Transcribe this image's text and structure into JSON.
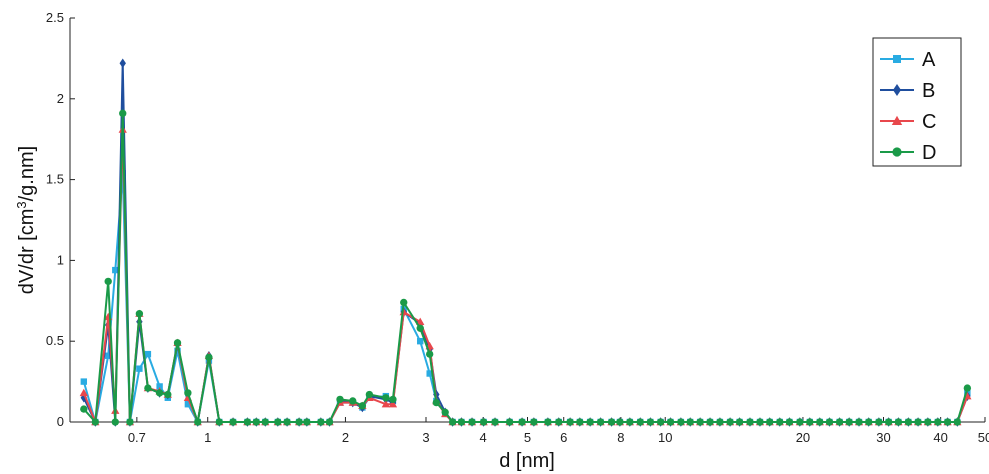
{
  "chart_data": {
    "type": "line",
    "xscale": "log",
    "xlim": [
      0.5,
      50
    ],
    "ylim": [
      0,
      2.5
    ],
    "xlabel": "d [nm]",
    "ylabel_main": "dV/dr [cm",
    "ylabel_sup": "3",
    "ylabel_tail": "/g.nm]",
    "xticks": [
      {
        "value": 0.7,
        "label": "0.7"
      },
      {
        "value": 1,
        "label": "1"
      },
      {
        "value": 2,
        "label": "2"
      },
      {
        "value": 3,
        "label": "3"
      },
      {
        "value": 4,
        "label": "4"
      },
      {
        "value": 5,
        "label": "5"
      },
      {
        "value": 6,
        "label": "6"
      },
      {
        "value": 8,
        "label": "8"
      },
      {
        "value": 10,
        "label": "10"
      },
      {
        "value": 20,
        "label": "20"
      },
      {
        "value": 30,
        "label": "30"
      },
      {
        "value": 40,
        "label": "40"
      },
      {
        "value": 50,
        "label": "50"
      }
    ],
    "yticks": [
      {
        "value": 0,
        "label": "0"
      },
      {
        "value": 0.5,
        "label": "0.5"
      },
      {
        "value": 1,
        "label": "1"
      },
      {
        "value": 1.5,
        "label": "1.5"
      },
      {
        "value": 2,
        "label": "2"
      },
      {
        "value": 2.5,
        "label": "2.5"
      }
    ],
    "legend_position": "top-right",
    "x": [
      0.536,
      0.568,
      0.606,
      0.628,
      0.652,
      0.676,
      0.709,
      0.74,
      0.785,
      0.818,
      0.859,
      0.905,
      0.951,
      1.006,
      1.06,
      1.136,
      1.221,
      1.277,
      1.336,
      1.423,
      1.491,
      1.584,
      1.647,
      1.767,
      1.846,
      1.946,
      2.075,
      2.178,
      2.256,
      2.451,
      2.54,
      2.682,
      2.914,
      3.056,
      3.16,
      3.304,
      3.43,
      3.586,
      3.782,
      4.009,
      4.246,
      4.57,
      4.865,
      5.163,
      5.54,
      5.852,
      6.196,
      6.507,
      6.853,
      7.222,
      7.633,
      7.961,
      8.37,
      8.819,
      9.281,
      9.77,
      10.27,
      10.82,
      11.34,
      11.92,
      12.53,
      13.17,
      13.86,
      14.54,
      15.32,
      16.11,
      16.92,
      17.8,
      18.69,
      19.69,
      20.7,
      21.77,
      22.86,
      24.05,
      25.24,
      26.52,
      27.85,
      29.31,
      30.79,
      32.34,
      34.0,
      35.7,
      37.5,
      39.43,
      41.42,
      43.5,
      45.75
    ],
    "series": [
      {
        "name": "A",
        "color": "#29abe2",
        "marker": "square",
        "values": [
          0.25,
          0.0,
          0.41,
          0.94,
          1.54,
          0.0,
          0.33,
          0.42,
          0.22,
          0.15,
          0.44,
          0.11,
          0.0,
          0.38,
          0.0,
          0.0,
          0.0,
          0.0,
          0.0,
          0.0,
          0.0,
          0.0,
          0.0,
          0.0,
          0.0,
          0.12,
          0.12,
          0.09,
          0.15,
          0.16,
          0.13,
          0.7,
          0.5,
          0.3,
          0.13,
          0.05,
          0.0,
          0.0,
          0.0,
          0.0,
          0.0,
          0.0,
          0.0,
          0.0,
          0.0,
          0.0,
          0.0,
          0.0,
          0.0,
          0.0,
          0.0,
          0.0,
          0.0,
          0.0,
          0.0,
          0.0,
          0.0,
          0.0,
          0.0,
          0.0,
          0.0,
          0.0,
          0.0,
          0.0,
          0.0,
          0.0,
          0.0,
          0.0,
          0.0,
          0.0,
          0.0,
          0.0,
          0.0,
          0.0,
          0.0,
          0.0,
          0.0,
          0.0,
          0.0,
          0.0,
          0.0,
          0.0,
          0.0,
          0.0,
          0.0,
          0.0,
          0.18
        ]
      },
      {
        "name": "B",
        "color": "#1f4e9e",
        "marker": "diamond",
        "values": [
          0.15,
          0.0,
          0.6,
          0.0,
          2.22,
          0.0,
          0.62,
          0.21,
          0.18,
          0.17,
          0.48,
          0.17,
          0.0,
          0.41,
          0.0,
          0.0,
          0.0,
          0.0,
          0.0,
          0.0,
          0.0,
          0.0,
          0.0,
          0.0,
          0.0,
          0.13,
          0.12,
          0.09,
          0.16,
          0.14,
          0.12,
          0.68,
          0.61,
          0.45,
          0.17,
          0.06,
          0.0,
          0.0,
          0.0,
          0.0,
          0.0,
          0.0,
          0.0,
          0.0,
          0.0,
          0.0,
          0.0,
          0.0,
          0.0,
          0.0,
          0.0,
          0.0,
          0.0,
          0.0,
          0.0,
          0.0,
          0.0,
          0.0,
          0.0,
          0.0,
          0.0,
          0.0,
          0.0,
          0.0,
          0.0,
          0.0,
          0.0,
          0.0,
          0.0,
          0.0,
          0.0,
          0.0,
          0.0,
          0.0,
          0.0,
          0.0,
          0.0,
          0.0,
          0.0,
          0.0,
          0.0,
          0.0,
          0.0,
          0.0,
          0.0,
          0.0,
          0.16
        ]
      },
      {
        "name": "C",
        "color": "#e8474c",
        "marker": "triangle",
        "values": [
          0.18,
          0.0,
          0.65,
          0.07,
          1.81,
          0.0,
          0.67,
          0.21,
          0.19,
          0.17,
          0.49,
          0.15,
          0.0,
          0.41,
          0.0,
          0.0,
          0.0,
          0.0,
          0.0,
          0.0,
          0.0,
          0.0,
          0.0,
          0.0,
          0.0,
          0.12,
          0.12,
          0.1,
          0.15,
          0.11,
          0.11,
          0.68,
          0.62,
          0.47,
          0.13,
          0.05,
          0.0,
          0.0,
          0.0,
          0.0,
          0.0,
          0.0,
          0.0,
          0.0,
          0.0,
          0.0,
          0.0,
          0.0,
          0.0,
          0.0,
          0.0,
          0.0,
          0.0,
          0.0,
          0.0,
          0.0,
          0.0,
          0.0,
          0.0,
          0.0,
          0.0,
          0.0,
          0.0,
          0.0,
          0.0,
          0.0,
          0.0,
          0.0,
          0.0,
          0.0,
          0.0,
          0.0,
          0.0,
          0.0,
          0.0,
          0.0,
          0.0,
          0.0,
          0.0,
          0.0,
          0.0,
          0.0,
          0.0,
          0.0,
          0.0,
          0.0,
          0.16
        ]
      },
      {
        "name": "D",
        "color": "#1a9a48",
        "marker": "circle",
        "values": [
          0.08,
          0.0,
          0.87,
          0.0,
          1.91,
          0.0,
          0.67,
          0.21,
          0.18,
          0.17,
          0.49,
          0.18,
          0.0,
          0.4,
          0.0,
          0.0,
          0.0,
          0.0,
          0.0,
          0.0,
          0.0,
          0.0,
          0.0,
          0.0,
          0.0,
          0.14,
          0.13,
          0.1,
          0.17,
          0.15,
          0.14,
          0.74,
          0.58,
          0.42,
          0.12,
          0.06,
          0.0,
          0.0,
          0.0,
          0.0,
          0.0,
          0.0,
          0.0,
          0.0,
          0.0,
          0.0,
          0.0,
          0.0,
          0.0,
          0.0,
          0.0,
          0.0,
          0.0,
          0.0,
          0.0,
          0.0,
          0.0,
          0.0,
          0.0,
          0.0,
          0.0,
          0.0,
          0.0,
          0.0,
          0.0,
          0.0,
          0.0,
          0.0,
          0.0,
          0.0,
          0.0,
          0.0,
          0.0,
          0.0,
          0.0,
          0.0,
          0.0,
          0.0,
          0.0,
          0.0,
          0.0,
          0.0,
          0.0,
          0.0,
          0.0,
          0.0,
          0.21
        ]
      }
    ]
  }
}
